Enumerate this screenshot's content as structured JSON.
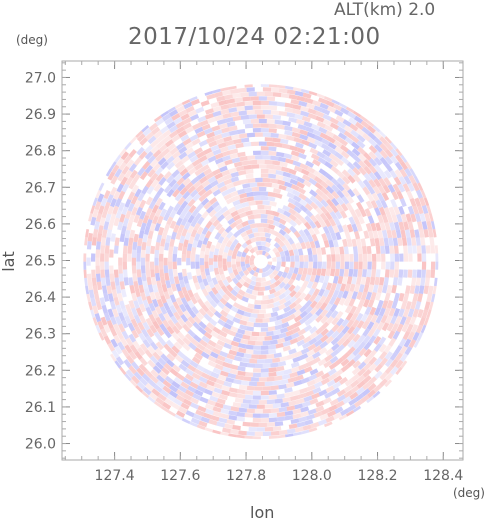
{
  "header": {
    "altitude_label": "ALT(km) 2.0",
    "timestamp": "2017/10/24 02:21:00"
  },
  "chart_data": {
    "type": "heatmap",
    "title": "2017/10/24 02:21:00",
    "subtitle": "ALT(km) 2.0",
    "xlabel": "lon",
    "ylabel": "lat",
    "x_unit": "(deg)",
    "y_unit": "(deg)",
    "xlim": [
      127.24,
      128.46
    ],
    "ylim": [
      25.955,
      27.045
    ],
    "x_ticks": [
      127.4,
      127.6,
      127.8,
      128.0,
      128.2,
      128.4
    ],
    "x_tick_labels": [
      "127.4",
      "127.6",
      "127.8",
      "128.0",
      "128.2",
      "128.4"
    ],
    "y_ticks": [
      26.0,
      26.1,
      26.2,
      26.3,
      26.4,
      26.5,
      26.6,
      26.7,
      26.8,
      26.9,
      27.0
    ],
    "y_tick_labels": [
      "26.0",
      "26.1",
      "26.2",
      "26.3",
      "26.4",
      "26.5",
      "26.6",
      "26.7",
      "26.8",
      "26.9",
      "27.0"
    ],
    "radar_center": [
      127.845,
      26.497
    ],
    "radar_radius_deg": 0.54,
    "grid": false,
    "colors": {
      "positive": "#f8b4b4",
      "negative": "#b4b4f8",
      "neutral": "#ffffff",
      "axis": "#aaaaaa"
    }
  }
}
